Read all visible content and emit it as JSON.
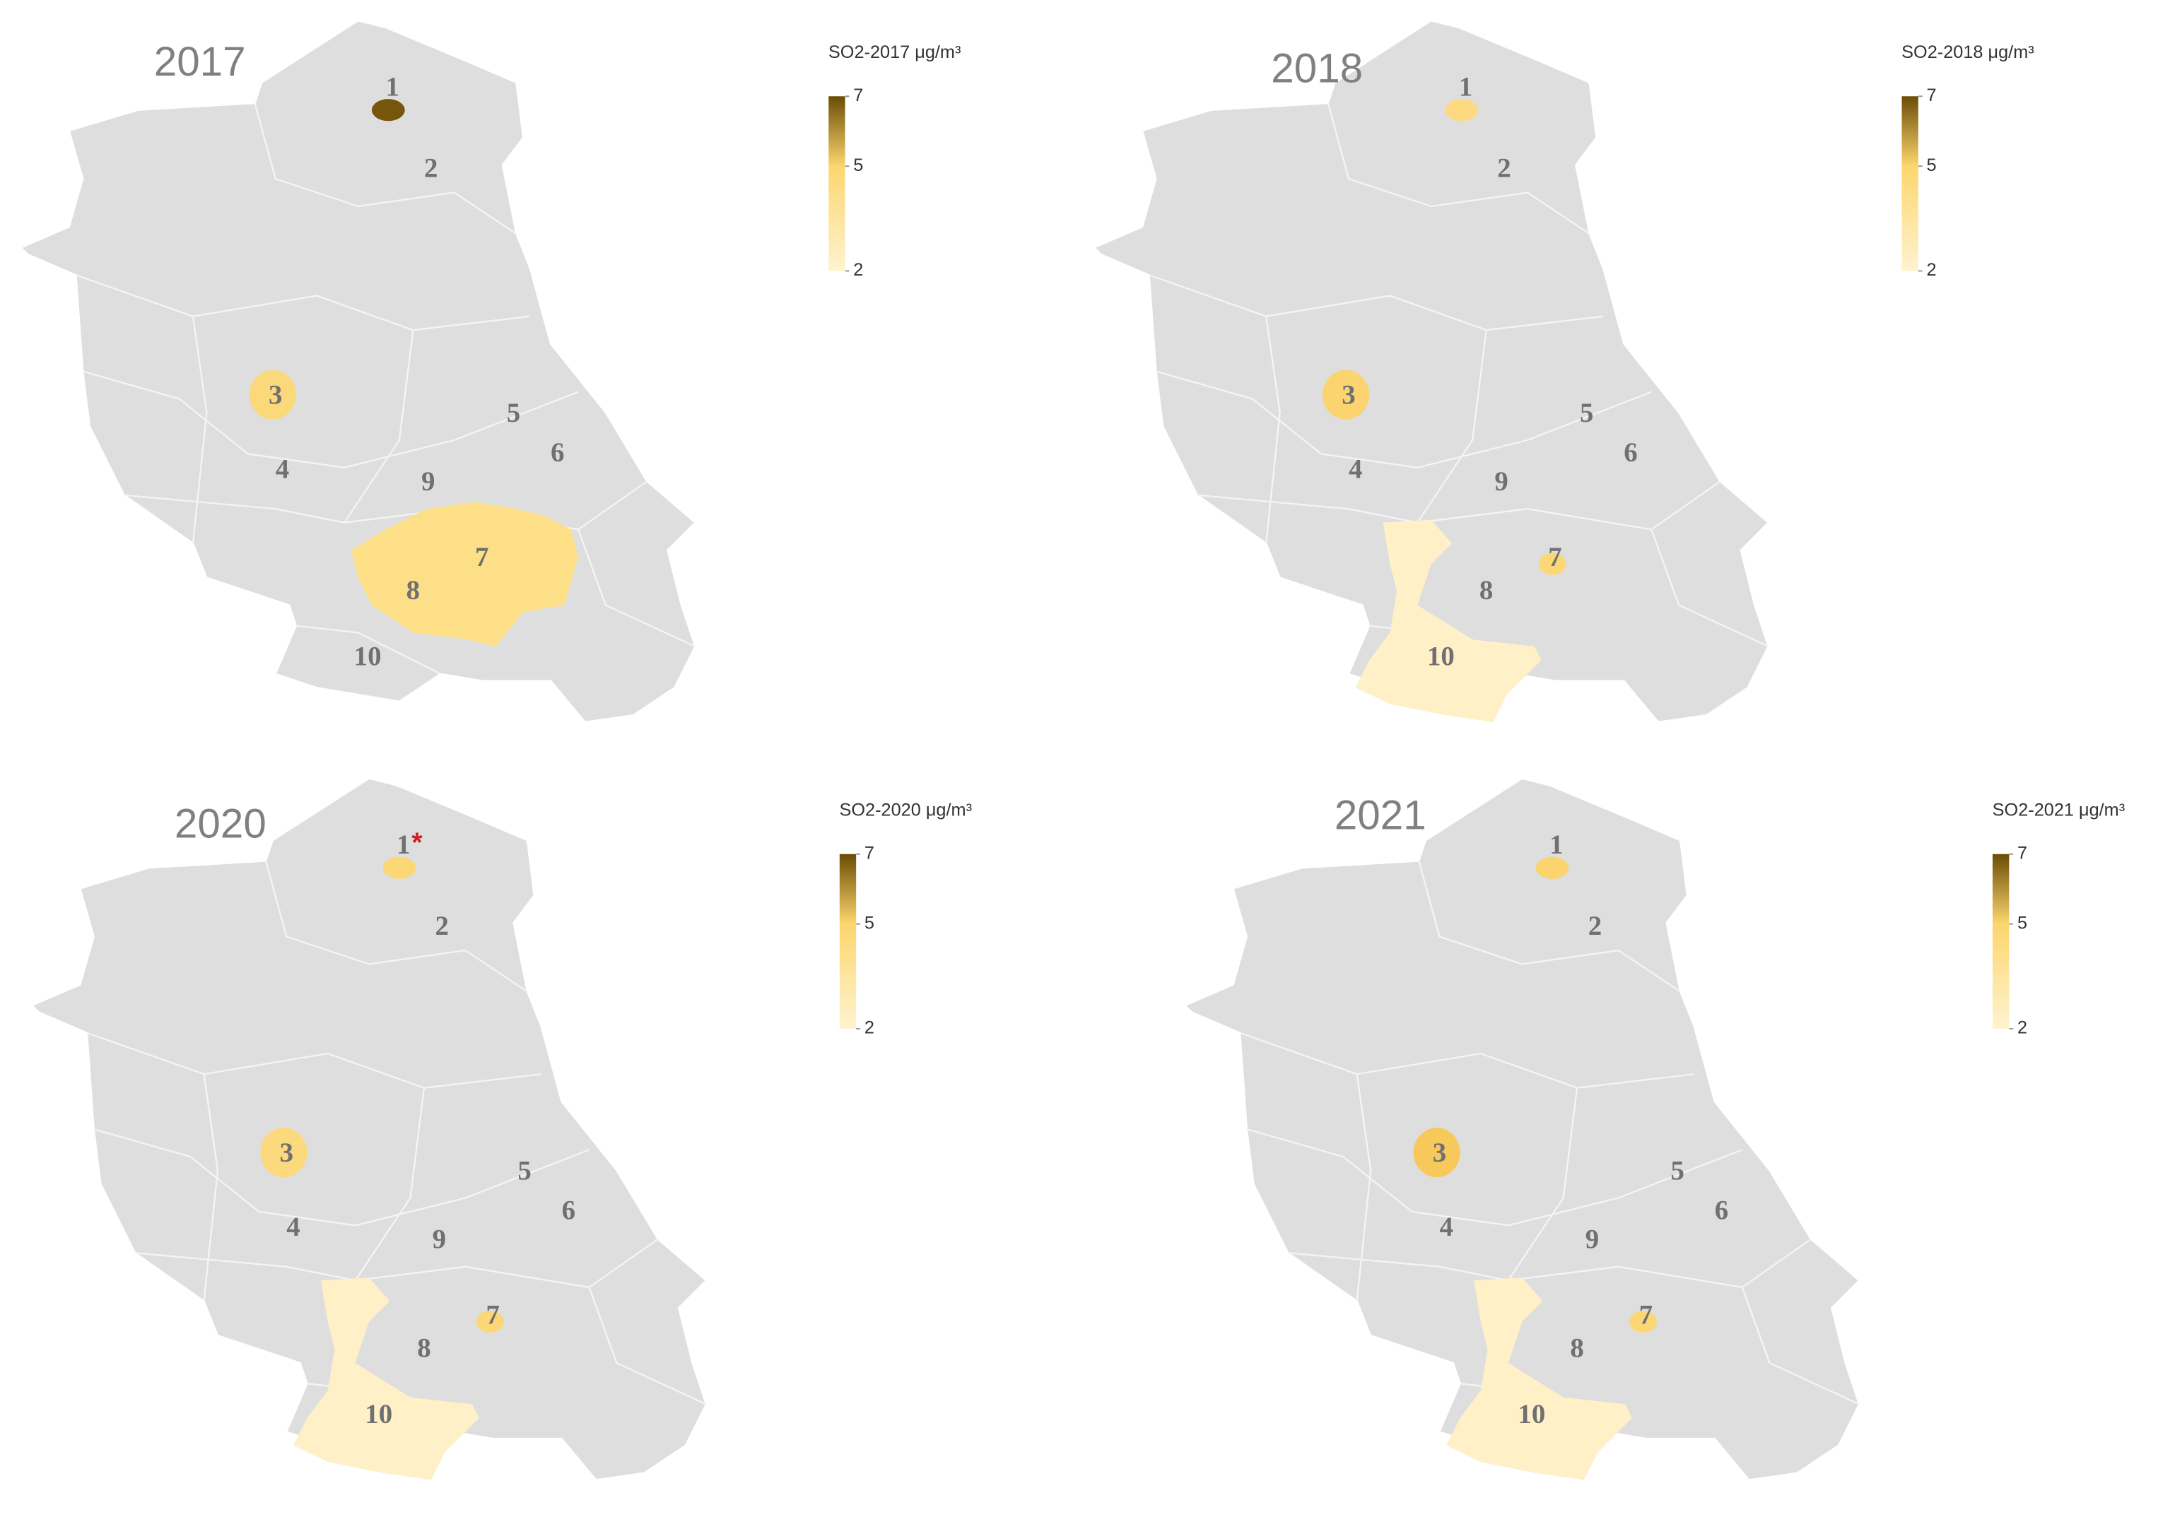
{
  "panels": [
    {
      "year": "2017",
      "legend": {
        "title": "SO2-2017 μg/m³",
        "range": [
          2,
          7
        ],
        "ticks": [
          7,
          5,
          2
        ],
        "colors": [
          "#fff3d0",
          "#fcd66e",
          "#6b4c05"
        ]
      },
      "regions": [
        {
          "label": "1",
          "color": "#76560a"
        },
        {
          "label": "2",
          "color": null
        },
        {
          "label": "3",
          "color": "#fbd97a"
        },
        {
          "label": "4",
          "color": null
        },
        {
          "label": "5",
          "color": null
        },
        {
          "label": "6",
          "color": null
        },
        {
          "label": "7",
          "color": "#fde7a6"
        },
        {
          "label": "8",
          "color": "#fddf88"
        },
        {
          "label": "9",
          "color": null
        },
        {
          "label": "10",
          "color": null
        }
      ]
    },
    {
      "year": "2018",
      "legend": {
        "title": "SO2-2018 μg/m³",
        "range": [
          2,
          7
        ],
        "ticks": [
          7,
          5,
          2
        ],
        "colors": [
          "#fff3d0",
          "#fcd66e",
          "#6b4c05"
        ]
      },
      "regions": [
        {
          "label": "1",
          "color": "#fdd982"
        },
        {
          "label": "2",
          "color": null
        },
        {
          "label": "3",
          "color": "#fbd470"
        },
        {
          "label": "4",
          "color": null
        },
        {
          "label": "5",
          "color": null
        },
        {
          "label": "6",
          "color": null
        },
        {
          "label": "7",
          "color": "#fbd775"
        },
        {
          "label": "8",
          "color": null
        },
        {
          "label": "9",
          "color": null
        },
        {
          "label": "10",
          "color": "#fff0c8"
        }
      ]
    },
    {
      "year": "2020",
      "legend": {
        "title": "SO2-2020 μg/m³",
        "range": [
          2,
          7
        ],
        "ticks": [
          7,
          5,
          2
        ],
        "colors": [
          "#fff3d0",
          "#fcd66e",
          "#6b4c05"
        ]
      },
      "regions": [
        {
          "label": "1",
          "color": "#fbd775",
          "note": "*"
        },
        {
          "label": "2",
          "color": null
        },
        {
          "label": "3",
          "color": "#fbd97c"
        },
        {
          "label": "4",
          "color": null
        },
        {
          "label": "5",
          "color": null
        },
        {
          "label": "6",
          "color": null
        },
        {
          "label": "7",
          "color": "#fbd775"
        },
        {
          "label": "8",
          "color": null
        },
        {
          "label": "9",
          "color": null
        },
        {
          "label": "10",
          "color": "#fff0c8"
        }
      ]
    },
    {
      "year": "2021",
      "legend": {
        "title": "SO2-2021 μg/m³",
        "range": [
          2,
          7
        ],
        "ticks": [
          7,
          5,
          2
        ],
        "colors": [
          "#fff3d0",
          "#fcd66e",
          "#6b4c05"
        ]
      },
      "regions": [
        {
          "label": "1",
          "color": "#fbd46e"
        },
        {
          "label": "2",
          "color": null
        },
        {
          "label": "3",
          "color": "#f7c95a"
        },
        {
          "label": "4",
          "color": null
        },
        {
          "label": "5",
          "color": null
        },
        {
          "label": "6",
          "color": null
        },
        {
          "label": "7",
          "color": "#fbd775"
        },
        {
          "label": "8",
          "color": null
        },
        {
          "label": "9",
          "color": null
        },
        {
          "label": "10",
          "color": "#fff0c8"
        }
      ]
    }
  ]
}
